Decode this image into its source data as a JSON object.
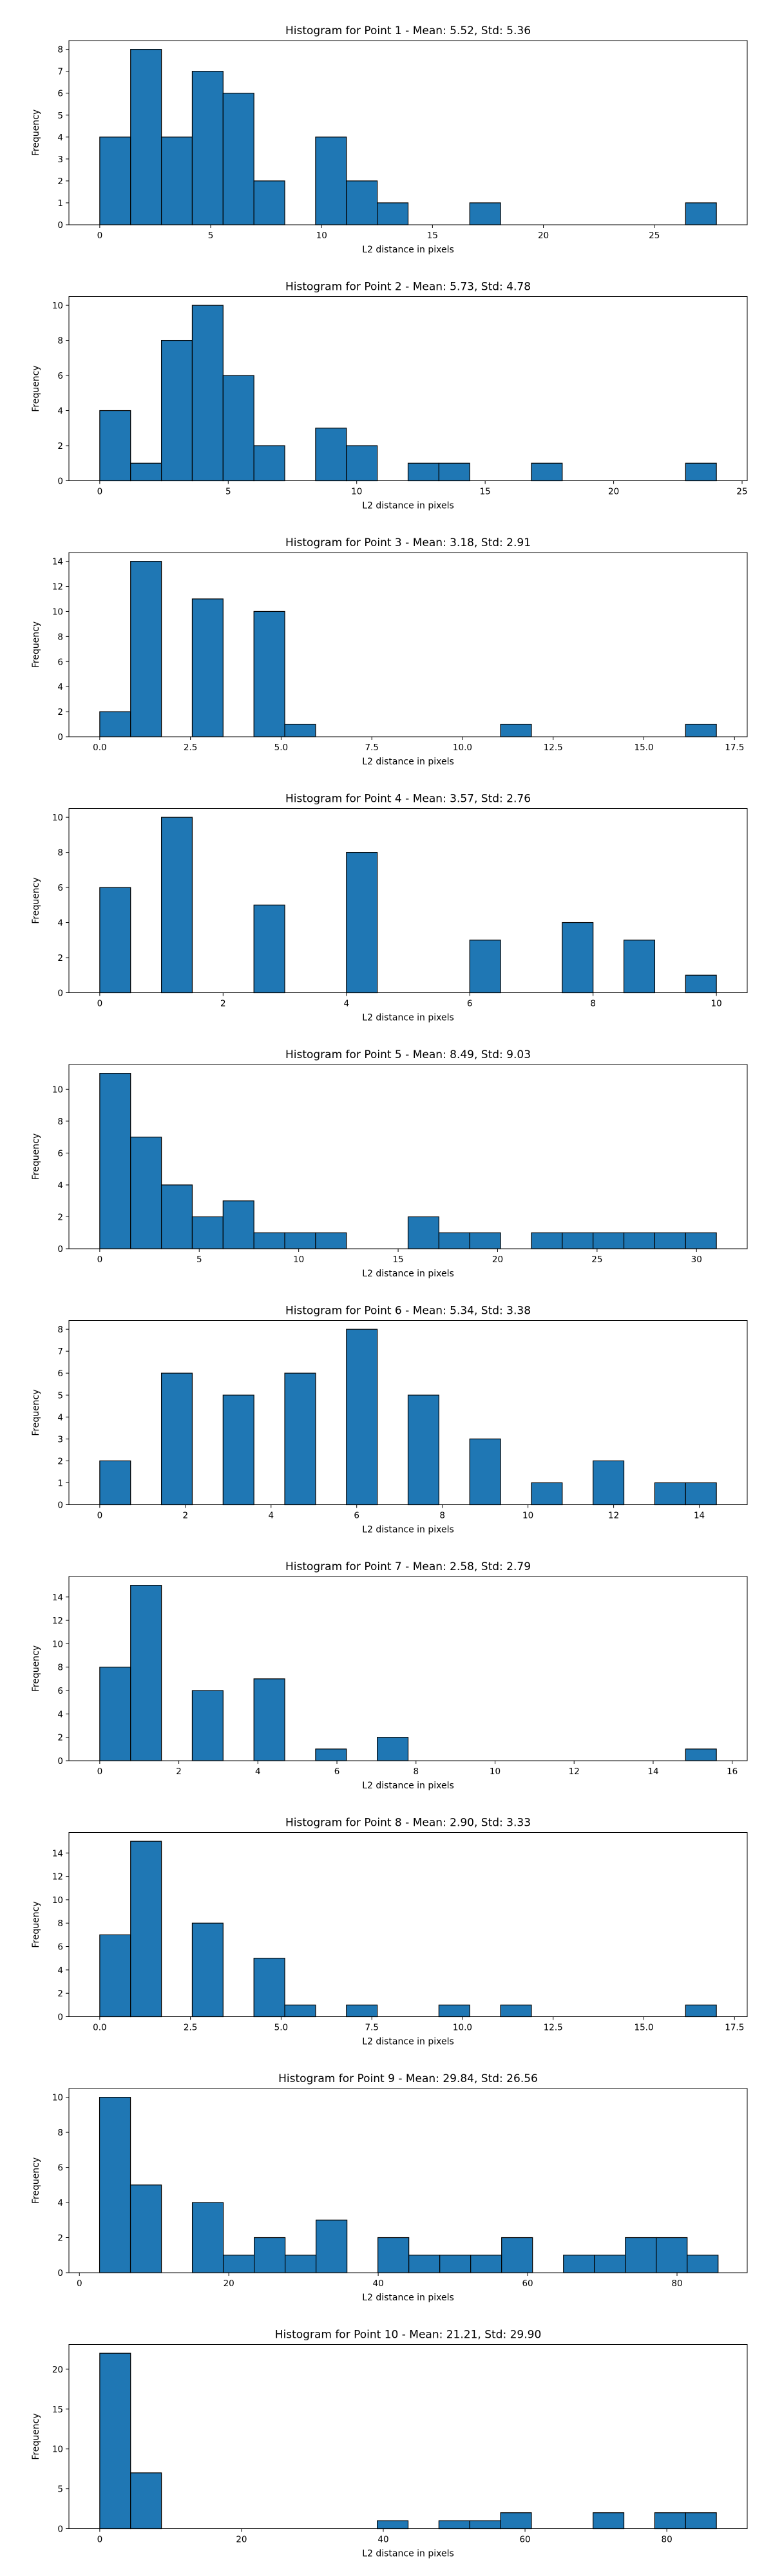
{
  "colors": {
    "bar_fill": "#1f77b4",
    "bar_edge": "#000000",
    "axis": "#000000",
    "background": "#ffffff"
  },
  "chart_data": [
    {
      "type": "bar",
      "title": "Histogram for Point 1 - Mean: 5.52, Std: 5.36",
      "xlabel": "L2 distance in pixels",
      "ylabel": "Frequency",
      "xlim": [
        -1.39,
        29.19
      ],
      "ylim": [
        0,
        8.4
      ],
      "xticks": [
        0,
        5,
        10,
        15,
        20,
        25
      ],
      "yticks": [
        0,
        1,
        2,
        3,
        4,
        5,
        6,
        7,
        8
      ],
      "grid": false,
      "bin_edges": [
        0,
        1.39,
        2.78,
        4.17,
        5.56,
        6.95,
        8.34,
        9.73,
        11.12,
        12.51,
        13.9,
        15.29,
        16.68,
        18.07,
        19.46,
        20.85,
        22.24,
        23.63,
        25.02,
        26.41,
        27.8
      ],
      "values": [
        4,
        8,
        4,
        7,
        6,
        2,
        0,
        4,
        2,
        1,
        0,
        0,
        1,
        0,
        0,
        0,
        0,
        0,
        0,
        1
      ]
    },
    {
      "type": "bar",
      "title": "Histogram for Point 2 - Mean: 5.73, Std: 4.78",
      "xlabel": "L2 distance in pixels",
      "ylabel": "Frequency",
      "xlim": [
        -1.2,
        25.2
      ],
      "ylim": [
        0,
        10.5
      ],
      "xticks": [
        0,
        5,
        10,
        15,
        20,
        25
      ],
      "yticks": [
        0,
        2,
        4,
        6,
        8,
        10
      ],
      "grid": false,
      "bin_edges": [
        0,
        1.2,
        2.4,
        3.6,
        4.8,
        6.0,
        7.2,
        8.4,
        9.6,
        10.8,
        12.0,
        13.2,
        14.4,
        15.6,
        16.8,
        18.0,
        19.2,
        20.4,
        21.6,
        22.8,
        24.0
      ],
      "values": [
        4,
        1,
        8,
        10,
        6,
        2,
        0,
        3,
        2,
        0,
        1,
        1,
        0,
        0,
        1,
        0,
        0,
        0,
        0,
        1
      ]
    },
    {
      "type": "bar",
      "title": "Histogram for Point 3 - Mean: 3.18, Std: 2.91",
      "xlabel": "L2 distance in pixels",
      "ylabel": "Frequency",
      "xlim": [
        -0.85,
        17.85
      ],
      "ylim": [
        0,
        14.7
      ],
      "xticks": [
        0.0,
        2.5,
        5.0,
        7.5,
        10.0,
        12.5,
        15.0,
        17.5
      ],
      "xtick_labels": [
        "0.0",
        "2.5",
        "5.0",
        "7.5",
        "10.0",
        "12.5",
        "15.0",
        "17.5"
      ],
      "yticks": [
        0,
        2,
        4,
        6,
        8,
        10,
        12,
        14
      ],
      "grid": false,
      "bin_edges": [
        0,
        0.85,
        1.7,
        2.55,
        3.4,
        4.25,
        5.1,
        5.95,
        6.8,
        7.65,
        8.5,
        9.35,
        10.2,
        11.05,
        11.9,
        12.75,
        13.6,
        14.45,
        15.3,
        16.15,
        17.0
      ],
      "values": [
        2,
        14,
        0,
        11,
        0,
        10,
        1,
        0,
        0,
        0,
        0,
        0,
        0,
        1,
        0,
        0,
        0,
        0,
        0,
        1
      ]
    },
    {
      "type": "bar",
      "title": "Histogram for Point 4 - Mean: 3.57, Std: 2.76",
      "xlabel": "L2 distance in pixels",
      "ylabel": "Frequency",
      "xlim": [
        -0.5,
        10.5
      ],
      "ylim": [
        0,
        10.5
      ],
      "xticks": [
        0,
        2,
        4,
        6,
        8,
        10
      ],
      "yticks": [
        0,
        2,
        4,
        6,
        8,
        10
      ],
      "grid": false,
      "bin_edges": [
        0,
        0.5,
        1.0,
        1.5,
        2.0,
        2.5,
        3.0,
        3.5,
        4.0,
        4.5,
        5.0,
        5.5,
        6.0,
        6.5,
        7.0,
        7.5,
        8.0,
        8.5,
        9.0,
        9.5,
        10.0
      ],
      "values": [
        6,
        0,
        10,
        0,
        0,
        5,
        0,
        0,
        8,
        0,
        0,
        0,
        3,
        0,
        0,
        4,
        0,
        3,
        0,
        1
      ]
    },
    {
      "type": "bar",
      "title": "Histogram for Point 5 - Mean: 8.49, Std: 9.03",
      "xlabel": "L2 distance in pixels",
      "ylabel": "Frequency",
      "xlim": [
        -1.55,
        32.55
      ],
      "ylim": [
        0,
        11.55
      ],
      "xticks": [
        0,
        5,
        10,
        15,
        20,
        25,
        30
      ],
      "yticks": [
        0,
        2,
        4,
        6,
        8,
        10
      ],
      "grid": false,
      "bin_edges": [
        0,
        1.55,
        3.1,
        4.65,
        6.2,
        7.75,
        9.3,
        10.85,
        12.4,
        13.95,
        15.5,
        17.05,
        18.6,
        20.15,
        21.7,
        23.25,
        24.8,
        26.35,
        27.9,
        29.45,
        31.0
      ],
      "values": [
        11,
        7,
        4,
        2,
        3,
        1,
        1,
        1,
        0,
        0,
        2,
        1,
        1,
        0,
        1,
        1,
        1,
        1,
        1,
        1
      ]
    },
    {
      "type": "bar",
      "title": "Histogram for Point 6 - Mean: 5.34, Std: 3.38",
      "xlabel": "L2 distance in pixels",
      "ylabel": "Frequency",
      "xlim": [
        -0.72,
        15.12
      ],
      "ylim": [
        0,
        8.4
      ],
      "xticks": [
        0,
        2,
        4,
        6,
        8,
        10,
        12,
        14
      ],
      "yticks": [
        0,
        1,
        2,
        3,
        4,
        5,
        6,
        7,
        8
      ],
      "grid": false,
      "bin_edges": [
        0,
        0.72,
        1.44,
        2.16,
        2.88,
        3.6,
        4.32,
        5.04,
        5.76,
        6.48,
        7.2,
        7.92,
        8.64,
        9.36,
        10.08,
        10.8,
        11.52,
        12.24,
        12.96,
        13.68,
        14.4
      ],
      "values": [
        2,
        0,
        6,
        0,
        5,
        0,
        6,
        0,
        8,
        0,
        5,
        0,
        3,
        0,
        1,
        0,
        2,
        0,
        1,
        1
      ]
    },
    {
      "type": "bar",
      "title": "Histogram for Point 7 - Mean: 2.58, Std: 2.79",
      "xlabel": "L2 distance in pixels",
      "ylabel": "Frequency",
      "xlim": [
        -0.78,
        16.38
      ],
      "ylim": [
        0,
        15.75
      ],
      "xticks": [
        0,
        2,
        4,
        6,
        8,
        10,
        12,
        14,
        16
      ],
      "yticks": [
        0,
        2,
        4,
        6,
        8,
        10,
        12,
        14
      ],
      "grid": false,
      "bin_edges": [
        0,
        0.78,
        1.56,
        2.34,
        3.12,
        3.9,
        4.68,
        5.46,
        6.24,
        7.02,
        7.8,
        8.58,
        9.36,
        10.14,
        10.92,
        11.7,
        12.48,
        13.26,
        14.04,
        14.82,
        15.6
      ],
      "values": [
        8,
        15,
        0,
        6,
        0,
        7,
        0,
        1,
        0,
        2,
        0,
        0,
        0,
        0,
        0,
        0,
        0,
        0,
        0,
        1
      ]
    },
    {
      "type": "bar",
      "title": "Histogram for Point 8 - Mean: 2.90, Std: 3.33",
      "xlabel": "L2 distance in pixels",
      "ylabel": "Frequency",
      "xlim": [
        -0.85,
        17.85
      ],
      "ylim": [
        0,
        15.75
      ],
      "xticks": [
        0.0,
        2.5,
        5.0,
        7.5,
        10.0,
        12.5,
        15.0,
        17.5
      ],
      "xtick_labels": [
        "0.0",
        "2.5",
        "5.0",
        "7.5",
        "10.0",
        "12.5",
        "15.0",
        "17.5"
      ],
      "yticks": [
        0,
        2,
        4,
        6,
        8,
        10,
        12,
        14
      ],
      "grid": false,
      "bin_edges": [
        0,
        0.85,
        1.7,
        2.55,
        3.4,
        4.25,
        5.1,
        5.95,
        6.8,
        7.65,
        8.5,
        9.35,
        10.2,
        11.05,
        11.9,
        12.75,
        13.6,
        14.45,
        15.3,
        16.15,
        17.0
      ],
      "values": [
        7,
        15,
        0,
        8,
        0,
        5,
        1,
        0,
        1,
        0,
        0,
        1,
        0,
        1,
        0,
        0,
        0,
        0,
        0,
        1
      ]
    },
    {
      "type": "bar",
      "title": "Histogram for Point 9 - Mean: 29.84, Std: 26.56",
      "xlabel": "L2 distance in pixels",
      "ylabel": "Frequency",
      "xlim": [
        -1.4,
        89.4
      ],
      "ylim": [
        0,
        10.5
      ],
      "xticks": [
        0,
        20,
        40,
        60,
        80
      ],
      "yticks": [
        0,
        2,
        4,
        6,
        8,
        10
      ],
      "grid": false,
      "bin_edges": [
        2.7,
        6.84,
        10.98,
        15.12,
        19.26,
        23.4,
        27.54,
        31.68,
        35.82,
        39.96,
        44.1,
        48.24,
        52.38,
        56.52,
        60.66,
        64.8,
        68.94,
        73.08,
        77.22,
        81.36,
        85.5
      ],
      "values": [
        10,
        5,
        0,
        4,
        1,
        2,
        1,
        3,
        0,
        2,
        1,
        1,
        1,
        2,
        0,
        1,
        1,
        2,
        2,
        1
      ]
    },
    {
      "type": "bar",
      "title": "Histogram for Point 10 - Mean: 21.21, Std: 29.90",
      "xlabel": "L2 distance in pixels",
      "ylabel": "Frequency",
      "xlim": [
        -4.35,
        91.35
      ],
      "ylim": [
        0,
        23.1
      ],
      "xticks": [
        0,
        20,
        40,
        60,
        80
      ],
      "yticks": [
        0,
        5,
        10,
        15,
        20
      ],
      "grid": false,
      "bin_edges": [
        0,
        4.35,
        8.7,
        13.05,
        17.4,
        21.75,
        26.1,
        30.45,
        34.8,
        39.15,
        43.5,
        47.85,
        52.2,
        56.55,
        60.9,
        65.25,
        69.6,
        73.95,
        78.3,
        82.65,
        87.0
      ],
      "values": [
        22,
        7,
        0,
        0,
        0,
        0,
        0,
        0,
        0,
        1,
        0,
        1,
        1,
        2,
        0,
        0,
        2,
        0,
        2,
        2
      ]
    }
  ]
}
